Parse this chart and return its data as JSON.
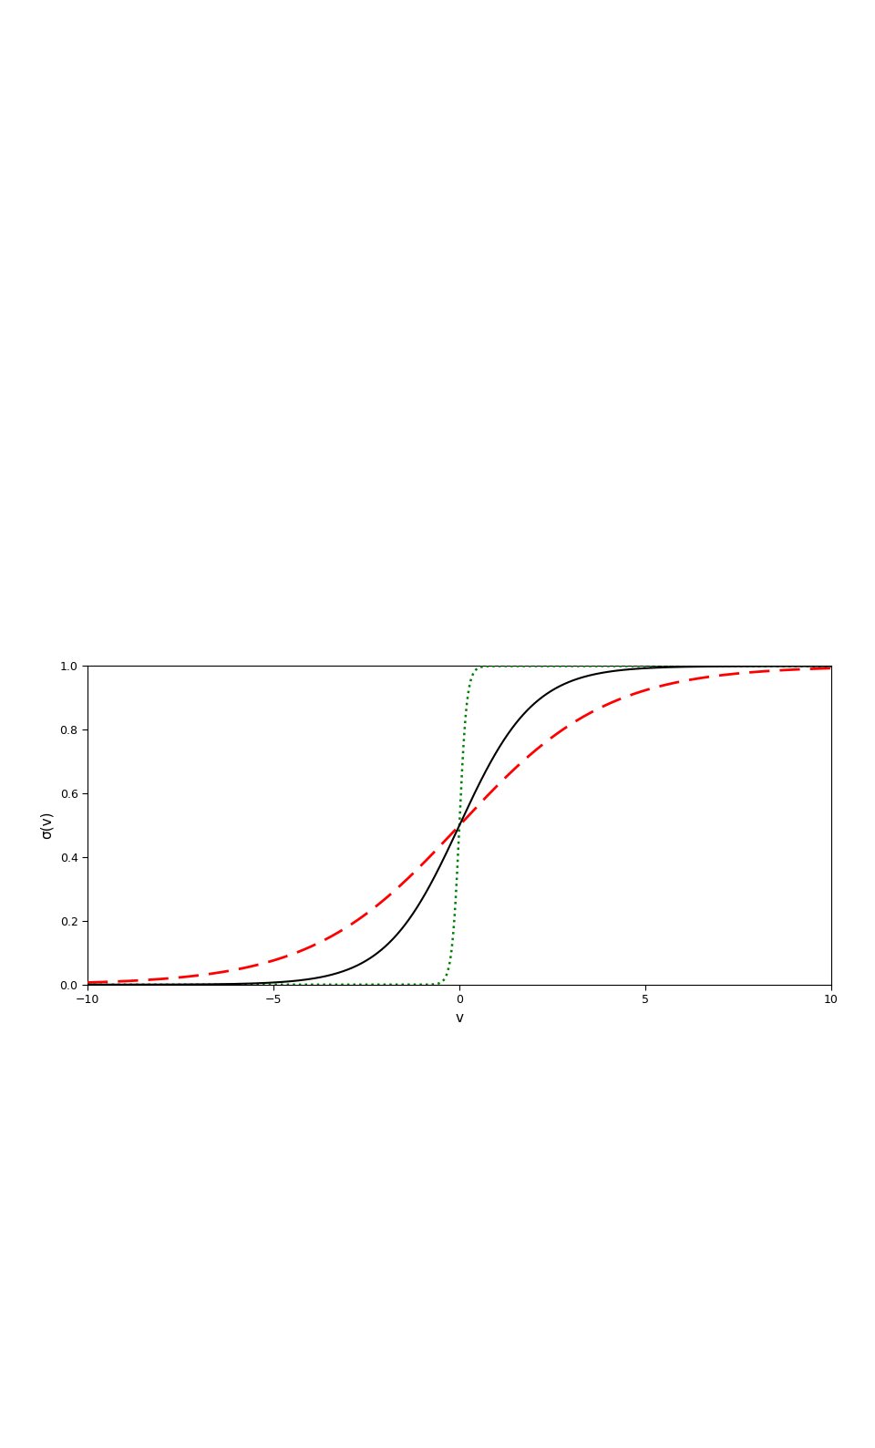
{
  "xlabel": "v",
  "ylabel": "σ(v)",
  "xlim": [
    -10,
    10
  ],
  "ylim": [
    0.0,
    1.0
  ],
  "xticks": [
    -10,
    -5,
    0,
    5,
    10
  ],
  "yticks": [
    0.0,
    0.2,
    0.4,
    0.6,
    0.8,
    1.0
  ],
  "s_black": 1.0,
  "s_red": 0.5,
  "s_green": 10.0,
  "color_black": "black",
  "color_red": "red",
  "color_green": "green",
  "lw_black": 1.5,
  "lw_red": 2.0,
  "lw_green": 1.8,
  "background_color": "#ffffff",
  "figure_width": 9.6,
  "figure_height": 15.88
}
